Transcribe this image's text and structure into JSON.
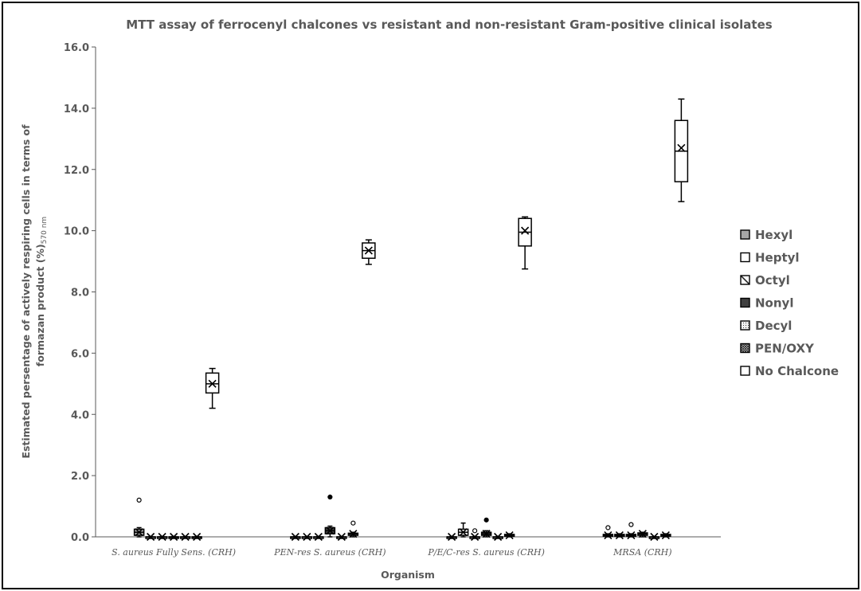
{
  "chart_data": {
    "type": "box",
    "title": "MTT assay of ferrocenyl chalcones vs resistant and non-resistant Gram-positive clinical isolates",
    "xlabel": "Organism",
    "ylabel_line1": "Estimated persentage of actively respiring cells in terms of",
    "ylabel_line2": "formazan product (%)",
    "ylabel_subscript": "570 nm",
    "ylim": [
      0,
      16
    ],
    "yticks": [
      "0.0",
      "2.0",
      "4.0",
      "6.0",
      "8.0",
      "10.0",
      "12.0",
      "14.0",
      "16.0"
    ],
    "grid": false,
    "legend_position": "right",
    "categories": [
      "S. aureus Fully Sens. (CRH)",
      "PEN-res S. aureus (CRH)",
      "P/E/C-res S. aureus (CRH)",
      "MRSA (CRH)"
    ],
    "series": [
      {
        "name": "Hexyl",
        "fill": "#a6a6a6",
        "boxes": [
          {
            "min": 0.0,
            "q1": 0.05,
            "median": 0.15,
            "mean": 0.15,
            "q3": 0.25,
            "max": 0.3,
            "outliers": [
              1.2
            ]
          },
          {
            "min": 0.0,
            "q1": 0.0,
            "median": 0.0,
            "mean": 0.0,
            "q3": 0.0,
            "max": 0.0,
            "outliers": []
          },
          {
            "min": 0.0,
            "q1": 0.0,
            "median": 0.0,
            "mean": 0.0,
            "q3": 0.0,
            "max": 0.0,
            "outliers": []
          },
          {
            "min": 0.0,
            "q1": 0.02,
            "median": 0.05,
            "mean": 0.05,
            "q3": 0.08,
            "max": 0.1,
            "outliers": [
              0.3
            ]
          }
        ]
      },
      {
        "name": "Heptyl",
        "fill": "#ffffff",
        "boxes": [
          {
            "min": 0.0,
            "q1": 0.0,
            "median": 0.0,
            "mean": 0.0,
            "q3": 0.0,
            "max": 0.0,
            "outliers": []
          },
          {
            "min": 0.0,
            "q1": 0.0,
            "median": 0.0,
            "mean": 0.0,
            "q3": 0.0,
            "max": 0.0,
            "outliers": []
          },
          {
            "min": 0.0,
            "q1": 0.05,
            "median": 0.15,
            "mean": 0.15,
            "q3": 0.25,
            "max": 0.45,
            "outliers": []
          },
          {
            "min": 0.0,
            "q1": 0.02,
            "median": 0.05,
            "mean": 0.05,
            "q3": 0.08,
            "max": 0.1,
            "outliers": []
          }
        ]
      },
      {
        "name": "Octyl",
        "fill": "#ffffff",
        "boxes": [
          {
            "min": 0.0,
            "q1": 0.0,
            "median": 0.0,
            "mean": 0.0,
            "q3": 0.0,
            "max": 0.0,
            "outliers": []
          },
          {
            "min": 0.0,
            "q1": 0.0,
            "median": 0.0,
            "mean": 0.0,
            "q3": 0.0,
            "max": 0.0,
            "outliers": []
          },
          {
            "min": 0.0,
            "q1": 0.0,
            "median": 0.0,
            "mean": 0.0,
            "q3": 0.0,
            "max": 0.0,
            "outliers": [
              0.2
            ]
          },
          {
            "min": 0.0,
            "q1": 0.02,
            "median": 0.05,
            "mean": 0.05,
            "q3": 0.08,
            "max": 0.1,
            "outliers": [
              0.4
            ]
          }
        ]
      },
      {
        "name": "Nonyl",
        "fill": "#404040",
        "boxes": [
          {
            "min": 0.0,
            "q1": 0.0,
            "median": 0.0,
            "mean": 0.0,
            "q3": 0.0,
            "max": 0.0,
            "outliers": []
          },
          {
            "min": 0.0,
            "q1": 0.1,
            "median": 0.2,
            "mean": 0.2,
            "q3": 0.3,
            "max": 0.35,
            "outliers": [
              1.3
            ]
          },
          {
            "min": 0.0,
            "q1": 0.05,
            "median": 0.1,
            "mean": 0.1,
            "q3": 0.15,
            "max": 0.2,
            "outliers": [
              0.55
            ]
          },
          {
            "min": 0.0,
            "q1": 0.05,
            "median": 0.1,
            "mean": 0.1,
            "q3": 0.13,
            "max": 0.15,
            "outliers": []
          }
        ]
      },
      {
        "name": "Decyl",
        "fill": "#e6e6e6",
        "boxes": [
          {
            "min": 0.0,
            "q1": 0.0,
            "median": 0.0,
            "mean": 0.0,
            "q3": 0.0,
            "max": 0.0,
            "outliers": []
          },
          {
            "min": 0.0,
            "q1": 0.0,
            "median": 0.0,
            "mean": 0.0,
            "q3": 0.0,
            "max": 0.0,
            "outliers": []
          },
          {
            "min": 0.0,
            "q1": 0.0,
            "median": 0.0,
            "mean": 0.0,
            "q3": 0.0,
            "max": 0.0,
            "outliers": []
          },
          {
            "min": 0.0,
            "q1": 0.0,
            "median": 0.0,
            "mean": 0.0,
            "q3": 0.0,
            "max": 0.0,
            "outliers": []
          }
        ]
      },
      {
        "name": "PEN/OXY",
        "fill": "#bfbfbf",
        "boxes": [
          {
            "min": 0.0,
            "q1": 0.0,
            "median": 0.0,
            "mean": 0.0,
            "q3": 0.0,
            "max": 0.0,
            "outliers": []
          },
          {
            "min": 0.0,
            "q1": 0.05,
            "median": 0.1,
            "mean": 0.1,
            "q3": 0.12,
            "max": 0.15,
            "outliers": [
              0.45
            ]
          },
          {
            "min": 0.0,
            "q1": 0.02,
            "median": 0.05,
            "mean": 0.05,
            "q3": 0.08,
            "max": 0.1,
            "outliers": []
          },
          {
            "min": 0.0,
            "q1": 0.02,
            "median": 0.05,
            "mean": 0.05,
            "q3": 0.08,
            "max": 0.1,
            "outliers": []
          }
        ]
      },
      {
        "name": "No Chalcone",
        "fill": "#ffffff",
        "boxes": [
          {
            "min": 4.2,
            "q1": 4.7,
            "median": 5.0,
            "mean": 5.0,
            "q3": 5.35,
            "max": 5.5,
            "outliers": []
          },
          {
            "min": 8.9,
            "q1": 9.1,
            "median": 9.35,
            "mean": 9.35,
            "q3": 9.6,
            "max": 9.7,
            "outliers": []
          },
          {
            "min": 8.75,
            "q1": 9.5,
            "median": 9.95,
            "mean": 10.0,
            "q3": 10.4,
            "max": 10.45,
            "outliers": []
          },
          {
            "min": 10.95,
            "q1": 11.6,
            "median": 12.6,
            "mean": 12.7,
            "q3": 13.6,
            "max": 14.3,
            "outliers": []
          }
        ]
      }
    ]
  }
}
